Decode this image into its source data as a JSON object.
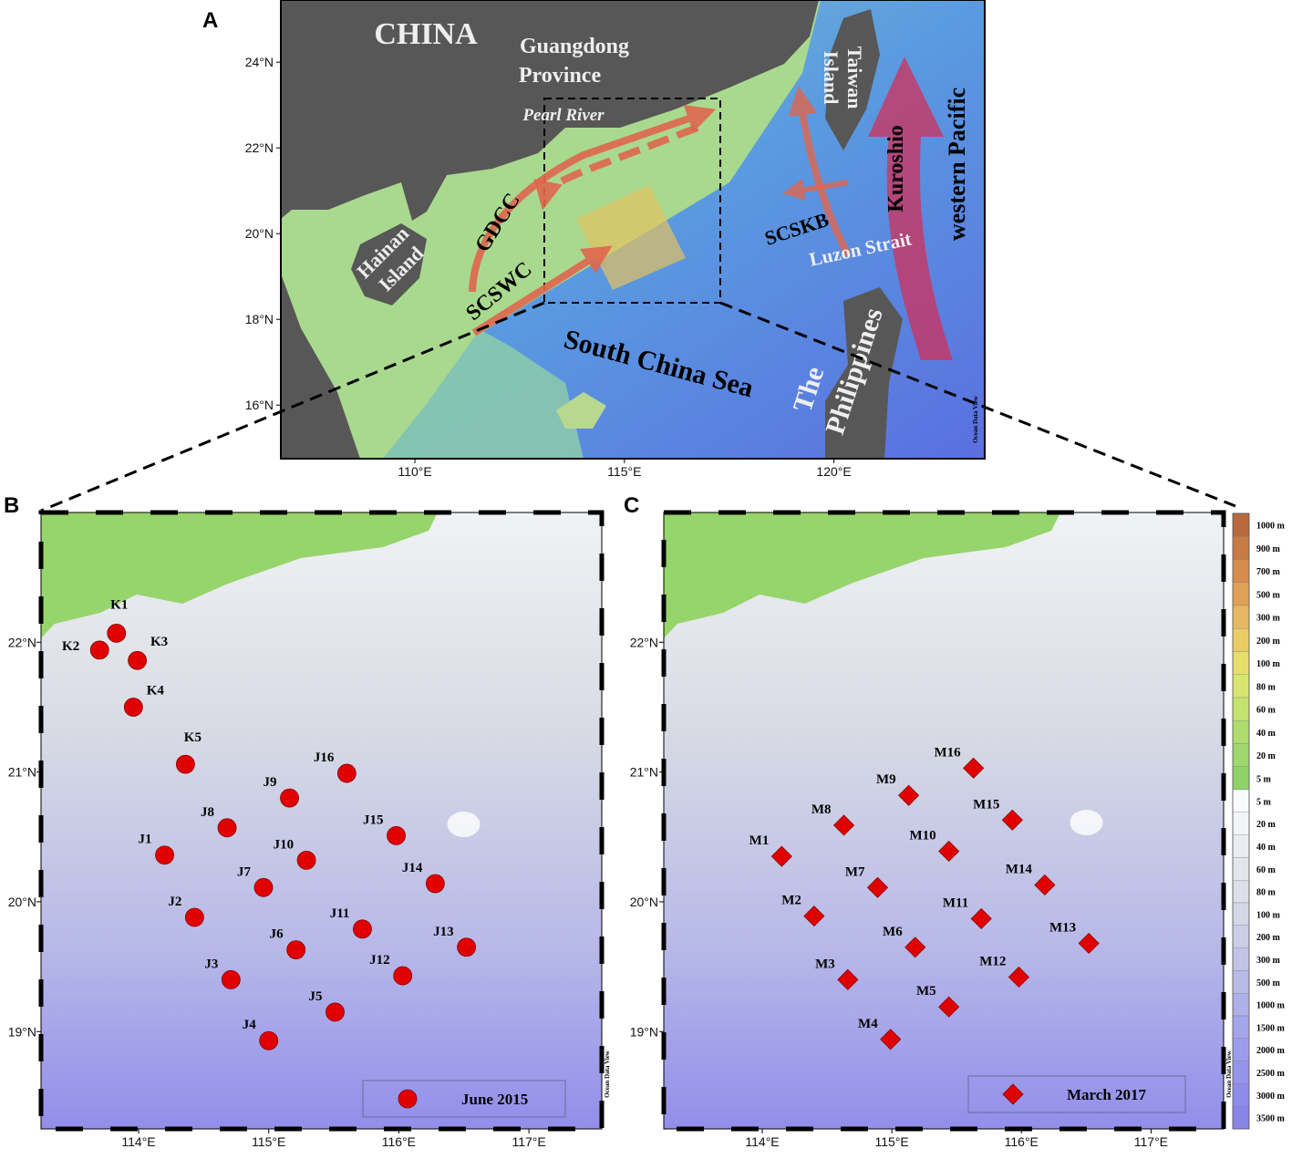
{
  "panel_a": {
    "label": "A",
    "lon_range": [
      106.8,
      123.6
    ],
    "lat_range": [
      14.75,
      25.45
    ],
    "lon_ticks": [
      {
        "value": 110,
        "label": "110°E"
      },
      {
        "value": 115,
        "label": "115°E"
      },
      {
        "value": 120,
        "label": "120°E"
      }
    ],
    "lat_ticks": [
      {
        "value": 24,
        "label": "24°N"
      },
      {
        "value": 22,
        "label": "22°N"
      },
      {
        "value": 20,
        "label": "20°N"
      },
      {
        "value": 18,
        "label": "18°N"
      },
      {
        "value": 16,
        "label": "16°N"
      }
    ],
    "labels": {
      "china": "CHINA",
      "guangdong": [
        "Guangdong",
        "Province"
      ],
      "pearl_river": "Pearl River",
      "taiwan": [
        "Taiwan",
        "Island"
      ],
      "western_pacific": "western Pacific",
      "kuroshio": "Kuroshio",
      "gdcc": "GDCC",
      "scskb": "SCSKB",
      "luzon_strait": "Luzon Strait",
      "hainan": [
        "Hainan",
        "Island"
      ],
      "scswc": "SCSWC",
      "south_china_sea": "South China Sea",
      "philippines": [
        "The",
        "Philippines"
      ]
    },
    "watermark": "Ocean Data View"
  },
  "panel_b": {
    "label": "B",
    "lon_range": [
      113.25,
      117.56
    ],
    "lat_range": [
      18.25,
      23.0
    ],
    "lon_ticks": [
      {
        "value": 114,
        "label": "114°E"
      },
      {
        "value": 115,
        "label": "115°E"
      },
      {
        "value": 116,
        "label": "116°E"
      },
      {
        "value": 117,
        "label": "117°E"
      }
    ],
    "lat_ticks": [
      {
        "value": 22,
        "label": "22°N"
      },
      {
        "value": 21,
        "label": "21°N"
      },
      {
        "value": 20,
        "label": "20°N"
      },
      {
        "value": 19,
        "label": "19°N"
      }
    ],
    "marker": "circle",
    "color": "#e00000",
    "legend": "June 2015",
    "watermark": "Ocean Data View",
    "stations": [
      {
        "name": "K1",
        "lon": 113.83,
        "lat": 22.07
      },
      {
        "name": "K2",
        "lon": 113.7,
        "lat": 21.94
      },
      {
        "name": "K3",
        "lon": 113.99,
        "lat": 21.86
      },
      {
        "name": "K4",
        "lon": 113.96,
        "lat": 21.5
      },
      {
        "name": "K5",
        "lon": 114.36,
        "lat": 21.06
      },
      {
        "name": "J16",
        "lon": 115.6,
        "lat": 20.99
      },
      {
        "name": "J9",
        "lon": 115.16,
        "lat": 20.8
      },
      {
        "name": "J8",
        "lon": 114.68,
        "lat": 20.57
      },
      {
        "name": "J15",
        "lon": 115.98,
        "lat": 20.51
      },
      {
        "name": "J1",
        "lon": 114.2,
        "lat": 20.36
      },
      {
        "name": "J10",
        "lon": 115.29,
        "lat": 20.32
      },
      {
        "name": "J7",
        "lon": 114.96,
        "lat": 20.11
      },
      {
        "name": "J14",
        "lon": 116.28,
        "lat": 20.14
      },
      {
        "name": "J2",
        "lon": 114.43,
        "lat": 19.88
      },
      {
        "name": "J11",
        "lon": 115.72,
        "lat": 19.79
      },
      {
        "name": "J13",
        "lon": 116.52,
        "lat": 19.65
      },
      {
        "name": "J6",
        "lon": 115.21,
        "lat": 19.63
      },
      {
        "name": "J3",
        "lon": 114.71,
        "lat": 19.4
      },
      {
        "name": "J12",
        "lon": 116.03,
        "lat": 19.43
      },
      {
        "name": "J5",
        "lon": 115.51,
        "lat": 19.15
      },
      {
        "name": "J4",
        "lon": 115.0,
        "lat": 18.93
      }
    ]
  },
  "panel_c": {
    "label": "C",
    "lon_range": [
      113.24,
      117.56
    ],
    "lat_range": [
      18.25,
      23.0
    ],
    "lon_ticks": [
      {
        "value": 114,
        "label": "114°E"
      },
      {
        "value": 115,
        "label": "115°E"
      },
      {
        "value": 116,
        "label": "116°E"
      },
      {
        "value": 117,
        "label": "117°E"
      }
    ],
    "lat_ticks": [
      {
        "value": 22,
        "label": "22°N"
      },
      {
        "value": 21,
        "label": "21°N"
      },
      {
        "value": 20,
        "label": "20°N"
      },
      {
        "value": 19,
        "label": "19°N"
      }
    ],
    "marker": "diamond",
    "color": "#e00000",
    "legend": "March 2017",
    "watermark": "Ocean Data View",
    "stations": [
      {
        "name": "M16",
        "lon": 115.63,
        "lat": 21.03
      },
      {
        "name": "M9",
        "lon": 115.13,
        "lat": 20.82
      },
      {
        "name": "M8",
        "lon": 114.63,
        "lat": 20.59
      },
      {
        "name": "M15",
        "lon": 115.93,
        "lat": 20.63
      },
      {
        "name": "M1",
        "lon": 114.15,
        "lat": 20.35
      },
      {
        "name": "M10",
        "lon": 115.44,
        "lat": 20.39
      },
      {
        "name": "M7",
        "lon": 114.89,
        "lat": 20.11
      },
      {
        "name": "M14",
        "lon": 116.18,
        "lat": 20.13
      },
      {
        "name": "M2",
        "lon": 114.4,
        "lat": 19.89
      },
      {
        "name": "M11",
        "lon": 115.69,
        "lat": 19.87
      },
      {
        "name": "M13",
        "lon": 116.52,
        "lat": 19.68
      },
      {
        "name": "M6",
        "lon": 115.18,
        "lat": 19.65
      },
      {
        "name": "M3",
        "lon": 114.66,
        "lat": 19.4
      },
      {
        "name": "M12",
        "lon": 115.98,
        "lat": 19.42
      },
      {
        "name": "M5",
        "lon": 115.44,
        "lat": 19.19
      },
      {
        "name": "M4",
        "lon": 114.99,
        "lat": 18.94
      }
    ]
  },
  "depth_scale": {
    "land": [
      {
        "label": "1000 m",
        "color": "#b8683c"
      },
      {
        "label": "900 m",
        "color": "#c87a44"
      },
      {
        "label": "700 m",
        "color": "#d68c4c"
      },
      {
        "label": "500 m",
        "color": "#e0a056"
      },
      {
        "label": "300 m",
        "color": "#e6b862"
      },
      {
        "label": "200 m",
        "color": "#e8cc66"
      },
      {
        "label": "100 m",
        "color": "#e6de6c"
      },
      {
        "label": "80 m",
        "color": "#d8e670"
      },
      {
        "label": "60 m",
        "color": "#c4e270"
      },
      {
        "label": "40 m",
        "color": "#aedc6e"
      },
      {
        "label": "20 m",
        "color": "#9cd86c"
      },
      {
        "label": "5 m",
        "color": "#8ed268"
      }
    ],
    "ocean": [
      {
        "label": "5 m",
        "color": "#fafbfc"
      },
      {
        "label": "20 m",
        "color": "#f2f4f6"
      },
      {
        "label": "40 m",
        "color": "#eaedf1"
      },
      {
        "label": "60 m",
        "color": "#e3e6ec"
      },
      {
        "label": "80 m",
        "color": "#dcdfe8"
      },
      {
        "label": "100 m",
        "color": "#d4d7e6"
      },
      {
        "label": "200 m",
        "color": "#cbcee6"
      },
      {
        "label": "300 m",
        "color": "#c2c4e6"
      },
      {
        "label": "500 m",
        "color": "#b8bae8"
      },
      {
        "label": "1000 m",
        "color": "#aeb0e8"
      },
      {
        "label": "1500 m",
        "color": "#a4a6ea"
      },
      {
        "label": "2000 m",
        "color": "#9c9dea"
      },
      {
        "label": "2500 m",
        "color": "#9494ea"
      },
      {
        "label": "3000 m",
        "color": "#8e8cea"
      },
      {
        "label": "3500 m",
        "color": "#8884e8"
      }
    ]
  }
}
